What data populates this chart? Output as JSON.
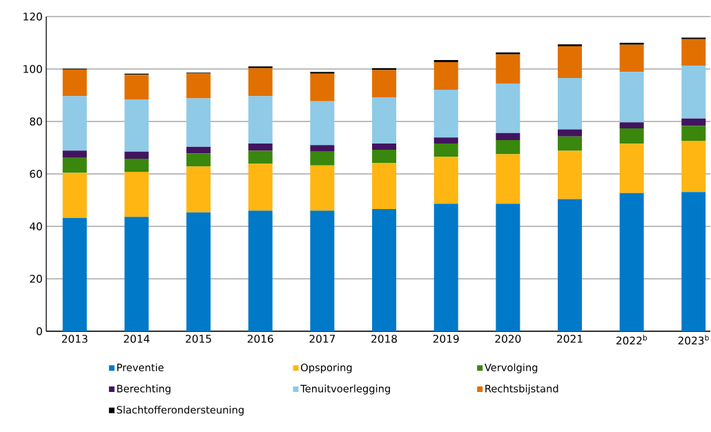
{
  "chart_data": {
    "type": "bar",
    "stacked": true,
    "categories": [
      "2013",
      "2014",
      "2015",
      "2016",
      "2017",
      "2018",
      "2019",
      "2020",
      "2021",
      "2022$^{b}$",
      "2023$^{b}$"
    ],
    "series": [
      {
        "name": "Preventie",
        "color": "#0079c8",
        "values": [
          43.2,
          43.6,
          45.3,
          46.0,
          46.0,
          46.6,
          48.6,
          48.6,
          50.4,
          52.7,
          53.1
        ]
      },
      {
        "name": "Opsporing",
        "color": "#ffb612",
        "values": [
          17.2,
          17.2,
          17.5,
          17.9,
          17.2,
          17.6,
          17.9,
          18.9,
          18.4,
          18.8,
          19.5
        ]
      },
      {
        "name": "Vervolging",
        "color": "#39870c",
        "values": [
          5.7,
          5.0,
          5.0,
          4.9,
          5.3,
          5.0,
          5.1,
          5.4,
          5.5,
          5.9,
          5.7
        ]
      },
      {
        "name": "Berechting",
        "color": "#42145f",
        "values": [
          2.8,
          2.7,
          2.5,
          2.8,
          2.5,
          2.4,
          2.3,
          2.7,
          2.7,
          2.3,
          2.8
        ]
      },
      {
        "name": "Tenuitvoerlegging",
        "color": "#8fcae7",
        "values": [
          20.8,
          19.9,
          18.5,
          18.1,
          16.7,
          17.5,
          18.2,
          18.9,
          19.6,
          19.2,
          20.2
        ]
      },
      {
        "name": "Rechtsbijstand",
        "color": "#e17000",
        "values": [
          10.1,
          9.4,
          9.5,
          10.6,
          10.5,
          10.5,
          10.5,
          11.1,
          12.1,
          10.4,
          10.1
        ]
      },
      {
        "name": "Slachtofferondersteuning",
        "color": "#000000",
        "values": [
          0.3,
          0.4,
          0.3,
          0.7,
          0.7,
          0.7,
          0.8,
          0.7,
          0.7,
          0.7,
          0.6
        ]
      }
    ],
    "ylim": [
      0,
      120
    ],
    "yticks": [
      0,
      20,
      40,
      60,
      80,
      100,
      120
    ],
    "grid": "y",
    "legend": "bottom"
  }
}
